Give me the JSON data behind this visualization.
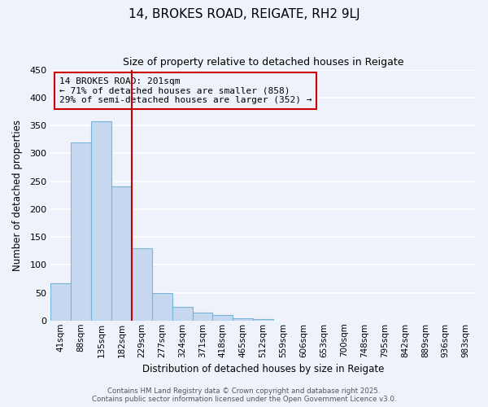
{
  "title": "14, BROKES ROAD, REIGATE, RH2 9LJ",
  "subtitle": "Size of property relative to detached houses in Reigate",
  "xlabel": "Distribution of detached houses by size in Reigate",
  "ylabel": "Number of detached properties",
  "bar_values": [
    67,
    320,
    358,
    241,
    130,
    49,
    25,
    14,
    10,
    4,
    2,
    0,
    0,
    0,
    0,
    0,
    0,
    0,
    0,
    0,
    0
  ],
  "bin_labels": [
    "41sqm",
    "88sqm",
    "135sqm",
    "182sqm",
    "229sqm",
    "277sqm",
    "324sqm",
    "371sqm",
    "418sqm",
    "465sqm",
    "512sqm",
    "559sqm",
    "606sqm",
    "653sqm",
    "700sqm",
    "748sqm",
    "795sqm",
    "842sqm",
    "889sqm",
    "936sqm",
    "983sqm"
  ],
  "bar_color": "#c5d8f0",
  "bar_edge_color": "#7ab4d8",
  "vline_color": "#cc0000",
  "annotation_title": "14 BROKES ROAD: 201sqm",
  "annotation_line1": "← 71% of detached houses are smaller (858)",
  "annotation_line2": "29% of semi-detached houses are larger (352) →",
  "annotation_box_color": "#cc0000",
  "ylim": [
    0,
    450
  ],
  "yticks": [
    0,
    50,
    100,
    150,
    200,
    250,
    300,
    350,
    400,
    450
  ],
  "footer1": "Contains HM Land Registry data © Crown copyright and database right 2025.",
  "footer2": "Contains public sector information licensed under the Open Government Licence v3.0.",
  "background_color": "#eef2fa",
  "grid_color": "#ffffff"
}
